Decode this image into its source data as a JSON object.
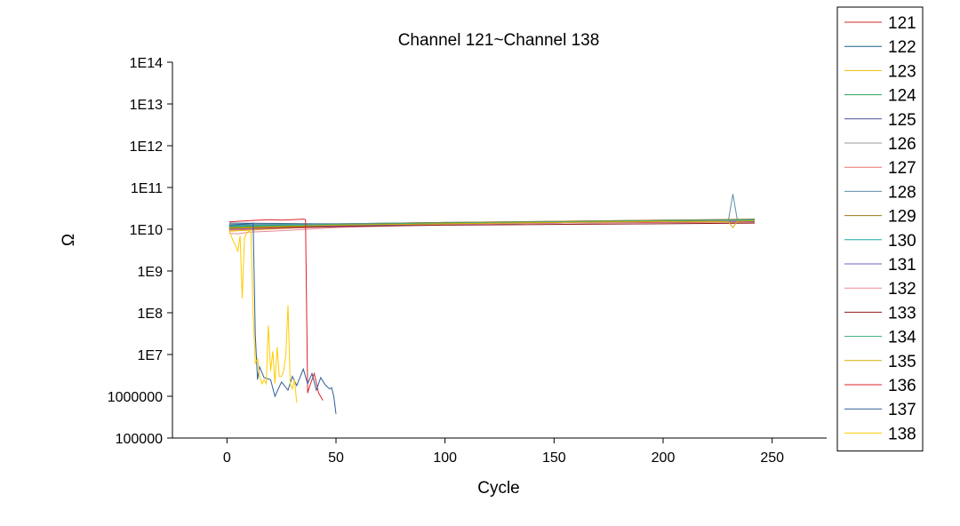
{
  "chart_data": {
    "type": "line",
    "title": "Channel 121~Channel 138",
    "xlabel": "Cycle",
    "ylabel": "Ω",
    "xlim": [
      -25,
      275
    ],
    "ylim": [
      100000,
      100000000000000
    ],
    "yscale": "log",
    "xticks": [
      0,
      50,
      100,
      150,
      200,
      250
    ],
    "xtick_labels": [
      "0",
      "50",
      "100",
      "150",
      "200",
      "250"
    ],
    "yticks": [
      100000,
      1000000,
      10000000,
      100000000,
      1000000000,
      10000000000,
      100000000000,
      1000000000000,
      10000000000000,
      100000000000000
    ],
    "ytick_labels": [
      "100000",
      "1000000",
      "1E7",
      "1E8",
      "1E9",
      "1E10",
      "1E11",
      "1E12",
      "1E13",
      "1E14"
    ],
    "legend": "right, outside",
    "series": [
      {
        "name": "121",
        "color": "#d62728",
        "x": [
          1,
          50,
          100,
          150,
          200,
          242
        ],
        "y": [
          11000000000,
          12500000000,
          13500000000,
          14000000000,
          14500000000,
          15000000000
        ]
      },
      {
        "name": "122",
        "color": "#1f5f8b",
        "x": [
          1,
          50,
          100,
          150,
          200,
          242
        ],
        "y": [
          14000000000,
          13500000000,
          14500000000,
          15000000000,
          15500000000,
          16000000000
        ]
      },
      {
        "name": "123",
        "color": "#e8c000",
        "x": [
          1,
          50,
          100,
          150,
          200,
          242
        ],
        "y": [
          9000000000,
          12000000000,
          13500000000,
          14500000000,
          15500000000,
          16000000000
        ]
      },
      {
        "name": "124",
        "color": "#2ca05a",
        "x": [
          1,
          50,
          100,
          150,
          200,
          242
        ],
        "y": [
          12000000000,
          13000000000,
          14000000000,
          14500000000,
          15500000000,
          16500000000
        ]
      },
      {
        "name": "125",
        "color": "#4b4b9b",
        "x": [
          1,
          50,
          100,
          150,
          200,
          242
        ],
        "y": [
          10500000000,
          12000000000,
          13000000000,
          14000000000,
          15000000000,
          15500000000
        ]
      },
      {
        "name": "126",
        "color": "#9a9a9a",
        "x": [
          1,
          50,
          100,
          150,
          200,
          242
        ],
        "y": [
          13000000000,
          13500000000,
          14000000000,
          15000000000,
          16000000000,
          16500000000
        ]
      },
      {
        "name": "127",
        "color": "#e8736f",
        "x": [
          1,
          50,
          100,
          150,
          200,
          242
        ],
        "y": [
          9500000000,
          11500000000,
          13000000000,
          14000000000,
          15000000000,
          15500000000
        ]
      },
      {
        "name": "128",
        "color": "#5e8fa8",
        "x": [
          1,
          50,
          100,
          150,
          200,
          230,
          232,
          234,
          242
        ],
        "y": [
          12500000000,
          13500000000,
          14500000000,
          15500000000,
          16500000000,
          17000000000,
          70000000000,
          17000000000,
          17500000000
        ]
      },
      {
        "name": "129",
        "color": "#a0761a",
        "x": [
          1,
          50,
          100,
          150,
          200,
          242
        ],
        "y": [
          11000000000,
          13000000000,
          14500000000,
          15500000000,
          16500000000,
          17500000000
        ]
      },
      {
        "name": "130",
        "color": "#1aaca8",
        "x": [
          1,
          50,
          100,
          150,
          200,
          242
        ],
        "y": [
          12000000000,
          13000000000,
          14000000000,
          15000000000,
          16000000000,
          17000000000
        ]
      },
      {
        "name": "131",
        "color": "#7a5cc0",
        "x": [
          1,
          50,
          100,
          150,
          200,
          242
        ],
        "y": [
          10000000000,
          12000000000,
          13000000000,
          14000000000,
          15000000000,
          15500000000
        ]
      },
      {
        "name": "132",
        "color": "#e88a9a",
        "x": [
          1,
          5,
          10,
          20,
          30,
          50,
          100,
          150,
          200,
          242
        ],
        "y": [
          8000000000,
          7800000000,
          8500000000,
          9000000000,
          9500000000,
          11000000000,
          13000000000,
          14000000000,
          15000000000,
          16000000000
        ]
      },
      {
        "name": "133",
        "color": "#8b1a1a",
        "x": [
          1,
          50,
          100,
          150,
          200,
          242
        ],
        "y": [
          10500000000,
          11500000000,
          12500000000,
          13000000000,
          13500000000,
          14000000000
        ]
      },
      {
        "name": "134",
        "color": "#3caa78",
        "x": [
          1,
          50,
          100,
          150,
          200,
          242
        ],
        "y": [
          11500000000,
          13000000000,
          14000000000,
          15000000000,
          16000000000,
          16500000000
        ]
      },
      {
        "name": "135",
        "color": "#d4b000",
        "x": [
          1,
          50,
          100,
          150,
          200,
          230,
          232,
          234,
          242
        ],
        "y": [
          10500000000,
          12500000000,
          13500000000,
          14500000000,
          15500000000,
          15000000000,
          11000000000,
          15500000000,
          16000000000
        ]
      },
      {
        "name": "136",
        "color": "#e0202a",
        "x": [
          1,
          5,
          10,
          15,
          20,
          25,
          30,
          35,
          36,
          37,
          38,
          40,
          42,
          44
        ],
        "y": [
          15000000000,
          15500000000,
          16000000000,
          16500000000,
          17000000000,
          16500000000,
          17000000000,
          17500000000,
          17000000000,
          1200000,
          1800000,
          3500000,
          1200000,
          800000
        ]
      },
      {
        "name": "137",
        "color": "#2f5f9a",
        "x": [
          1,
          5,
          10,
          12,
          13,
          14,
          15,
          17,
          20,
          22,
          25,
          28,
          30,
          32,
          35,
          37,
          39,
          41,
          43,
          45,
          47,
          48,
          49,
          50
        ],
        "y": [
          12500000000,
          13000000000,
          13500000000,
          14000000000,
          30000000,
          2500000,
          5000000,
          2800000,
          2500000,
          1000000,
          2200000,
          1400000,
          3000000,
          1800000,
          4500000,
          2000000,
          3500000,
          1400000,
          2800000,
          1900000,
          1500000,
          1600000,
          1000000,
          380000
        ]
      },
      {
        "name": "138",
        "color": "#ffcc00",
        "x": [
          1,
          3,
          4,
          5,
          6,
          7,
          8,
          9,
          10,
          11,
          12,
          13,
          14,
          15,
          16,
          17,
          18,
          19,
          20,
          21,
          22,
          23,
          24,
          25,
          26,
          27,
          28,
          29,
          30,
          31,
          32
        ],
        "y": [
          9000000000,
          5000000000,
          4000000000,
          3000000000,
          7000000000,
          220000000,
          6000000000,
          8000000000,
          9000000000,
          8500000000,
          100000000,
          6000000,
          8000000,
          3000000,
          2000000,
          2500000,
          2000000,
          50000000,
          4000000,
          12000000,
          2000000,
          15000000,
          3000000,
          3000000,
          4000000,
          10000000,
          150000000,
          2000000,
          1500000,
          2500000,
          700000
        ]
      }
    ]
  }
}
